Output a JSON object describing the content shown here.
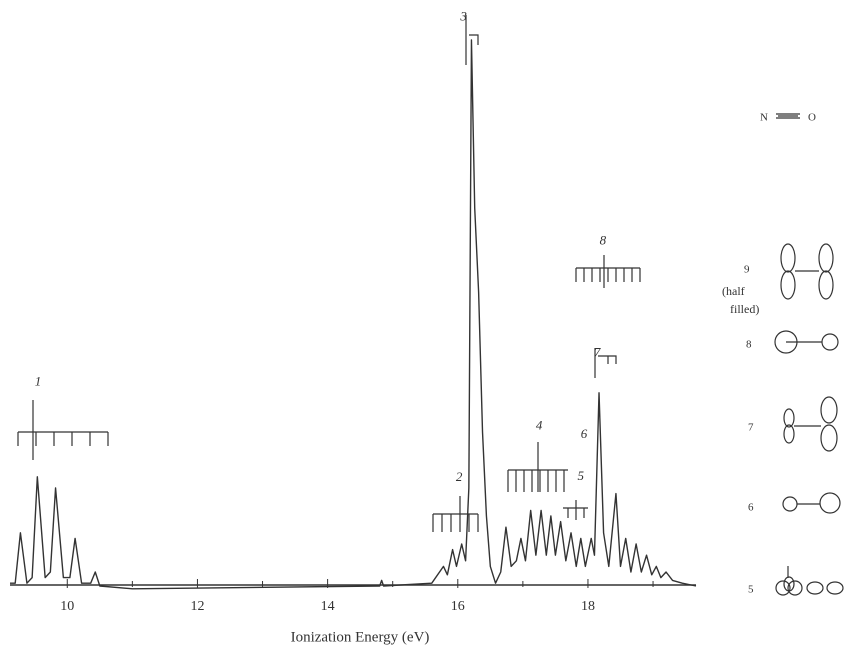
{
  "chart_data": {
    "type": "line",
    "x_label": "Ionization Energy (eV)",
    "xlim": [
      9.12,
      19.66
    ],
    "xticks": [
      10,
      12,
      14,
      16,
      18
    ],
    "minor_xticks": [
      11,
      13,
      15,
      17,
      19
    ],
    "ylim": [
      0,
      100
    ],
    "series": [
      {
        "color": "#333333",
        "x": [
          9.12,
          9.2,
          9.28,
          9.38,
          9.46,
          9.54,
          9.66,
          9.74,
          9.82,
          9.94,
          10.04,
          10.12,
          10.22,
          10.36,
          10.43,
          10.5,
          11,
          14.8,
          14.83,
          14.86,
          15.6,
          15.78,
          15.84,
          15.92,
          15.98,
          16.06,
          16.12,
          16.17,
          16.21,
          16.26,
          16.32,
          16.38,
          16.44,
          16.5,
          16.58,
          16.66,
          16.74,
          16.82,
          16.9,
          16.97,
          17.04,
          17.12,
          17.2,
          17.28,
          17.36,
          17.43,
          17.5,
          17.58,
          17.66,
          17.74,
          17.82,
          17.89,
          17.96,
          18.05,
          18.1,
          18.17,
          18.24,
          18.32,
          18.43,
          18.5,
          18.58,
          18.66,
          18.74,
          18.82,
          18.9,
          18.98,
          19.05,
          19.12,
          19.2,
          19.3,
          19.45,
          19.66
        ],
        "values": [
          3,
          3,
          12,
          3,
          4,
          22,
          4,
          5,
          20,
          4,
          4,
          11,
          3,
          3,
          5,
          2.5,
          2,
          2.5,
          3.5,
          2.5,
          3,
          6,
          4.5,
          9,
          6,
          10,
          7,
          20,
          100,
          70,
          55,
          30,
          15,
          6,
          3,
          5,
          13,
          6,
          7,
          11,
          7,
          16,
          8,
          16,
          8,
          15,
          8,
          14,
          7,
          12,
          6,
          11,
          6,
          11,
          8,
          37,
          12,
          6,
          19,
          6,
          11,
          5,
          10,
          5,
          8,
          4.5,
          6,
          4,
          5,
          3.5,
          3,
          2.5
        ]
      }
    ],
    "annotations": [
      {
        "text": "1",
        "x": 9.55,
        "y": 38.8
      },
      {
        "text": "2",
        "x": 16.02,
        "y": 21.8
      },
      {
        "text": "3",
        "x": 16.09,
        "y": 104
      },
      {
        "text": "4",
        "x": 17.25,
        "y": 31
      },
      {
        "text": "5",
        "x": 17.89,
        "y": 22
      },
      {
        "text": "6",
        "x": 17.94,
        "y": 29.5
      },
      {
        "text": "7",
        "x": 18.14,
        "y": 44
      },
      {
        "text": "8",
        "x": 18.23,
        "y": 64
      }
    ]
  },
  "orbital_panel": {
    "molecule": [
      "N",
      "O"
    ],
    "orbitals": [
      {
        "label": "9",
        "note": [
          "(half",
          "filled)"
        ]
      },
      {
        "label": "8"
      },
      {
        "label": "7"
      },
      {
        "label": "6"
      },
      {
        "label": "5"
      }
    ]
  }
}
